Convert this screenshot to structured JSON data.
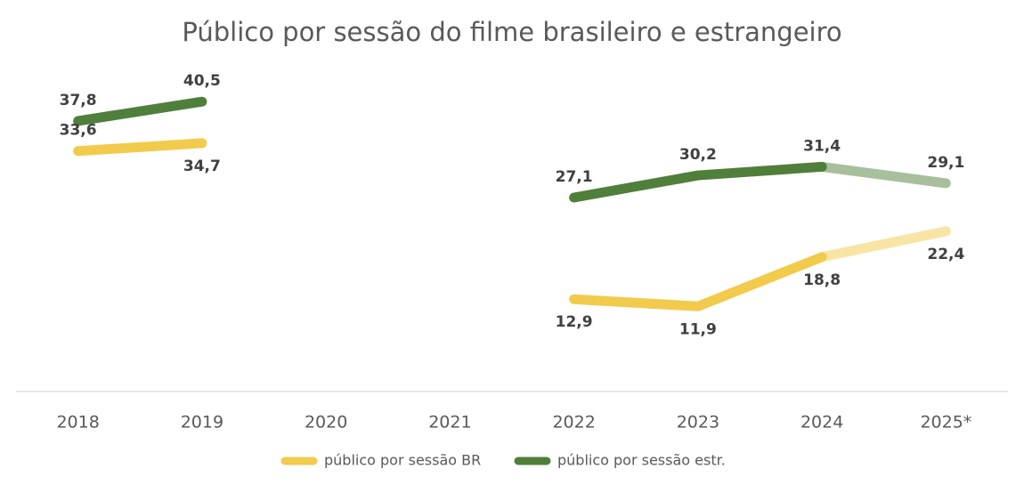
{
  "chart_data": {
    "type": "line",
    "title": "Público por sessão do filme brasileiro e estrangeiro",
    "categories": [
      "2018",
      "2019",
      "2020",
      "2021",
      "2022",
      "2023",
      "2024",
      "2025*"
    ],
    "series": [
      {
        "name": "público por sessão BR",
        "color": "#f2cb4c",
        "values": [
          33.6,
          34.7,
          null,
          null,
          12.9,
          11.9,
          18.8,
          22.4
        ],
        "value_labels": [
          "33,6",
          "34,7",
          null,
          null,
          "12,9",
          "11,9",
          "18,8",
          "22,4"
        ]
      },
      {
        "name": "público por sessão estr.",
        "color": "#4f7f3a",
        "values": [
          37.8,
          40.5,
          null,
          null,
          27.1,
          30.2,
          31.4,
          29.1
        ],
        "value_labels": [
          "37,8",
          "40,5",
          null,
          null,
          "27,1",
          "30,2",
          "31,4",
          "29,1"
        ]
      }
    ],
    "ylim": [
      0,
      45
    ],
    "last_segment_faded": true,
    "legend": "bottom"
  }
}
